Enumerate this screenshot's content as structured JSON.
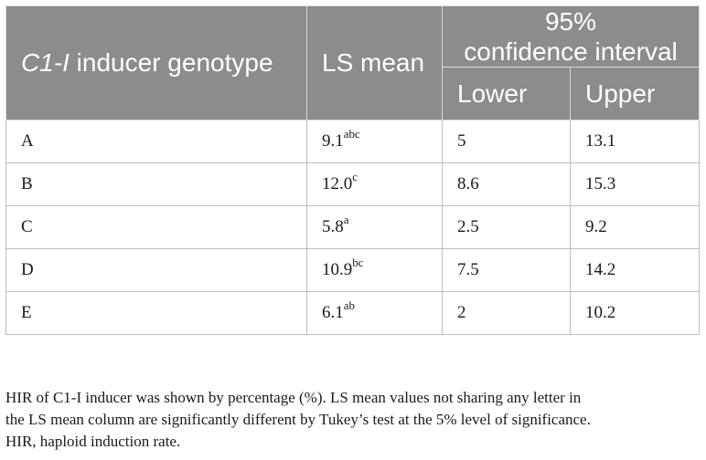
{
  "table": {
    "header": {
      "genotype_prefix": "C1-I",
      "genotype_suffix": " inducer genotype",
      "ls_mean": "LS mean",
      "ci_line1": "95%",
      "ci_line2": "confidence interval",
      "lower": "Lower",
      "upper": "Upper"
    },
    "rows": [
      {
        "genotype": "A",
        "mean": "9.1",
        "letters": "abc",
        "lower": "5",
        "upper": "13.1"
      },
      {
        "genotype": "B",
        "mean": "12.0",
        "letters": "c",
        "lower": "8.6",
        "upper": "15.3"
      },
      {
        "genotype": "C",
        "mean": "5.8",
        "letters": "a",
        "lower": "2.5",
        "upper": "9.2"
      },
      {
        "genotype": "D",
        "mean": "10.9",
        "letters": "bc",
        "lower": "7.5",
        "upper": "14.2"
      },
      {
        "genotype": "E",
        "mean": "6.1",
        "letters": "ab",
        "lower": "2",
        "upper": "10.2"
      }
    ]
  },
  "footnote": {
    "line1": "HIR of C1-I inducer was shown by percentage (%). LS mean values not sharing any letter in",
    "line2": "the LS mean column are significantly different by Tukey’s test at the 5% level of significance.",
    "line3": "HIR, haploid induction rate."
  },
  "colors": {
    "header_bg": "#8c8c8c",
    "header_text": "#ffffff",
    "border": "#bdbdbd"
  }
}
